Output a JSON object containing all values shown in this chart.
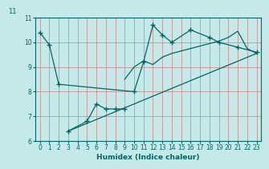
{
  "title": "",
  "xlabel": "Humidex (Indice chaleur)",
  "xlim": [
    -0.5,
    23.5
  ],
  "ylim": [
    6,
    11
  ],
  "yticks": [
    6,
    7,
    8,
    9,
    10,
    11
  ],
  "xticks": [
    0,
    1,
    2,
    3,
    4,
    5,
    6,
    7,
    8,
    9,
    10,
    11,
    12,
    13,
    14,
    15,
    16,
    17,
    18,
    19,
    20,
    21,
    22,
    23
  ],
  "bg_color": "#c5e8e8",
  "line_color": "#006666",
  "grid_color": "#b0d0d0",
  "line1_x": [
    0,
    1,
    2,
    10,
    11,
    12,
    13,
    14,
    16,
    18,
    19,
    21,
    23
  ],
  "line1_y": [
    10.4,
    9.9,
    8.3,
    8.0,
    9.2,
    10.7,
    10.3,
    10.0,
    10.5,
    10.2,
    10.0,
    9.8,
    9.6
  ],
  "line2_x": [
    3,
    5,
    6,
    7,
    8,
    9
  ],
  "line2_y": [
    6.4,
    6.8,
    7.5,
    7.3,
    7.3,
    7.3
  ],
  "line3_x": [
    3,
    23
  ],
  "line3_y": [
    6.4,
    9.55
  ],
  "line4_x": [
    9,
    10,
    11,
    12,
    13,
    14,
    15,
    16,
    17,
    18,
    19,
    20,
    21,
    22,
    23
  ],
  "line4_y": [
    8.5,
    9.0,
    9.25,
    9.1,
    9.4,
    9.55,
    9.65,
    9.75,
    9.85,
    9.95,
    10.05,
    10.2,
    10.45,
    9.75,
    9.55
  ]
}
